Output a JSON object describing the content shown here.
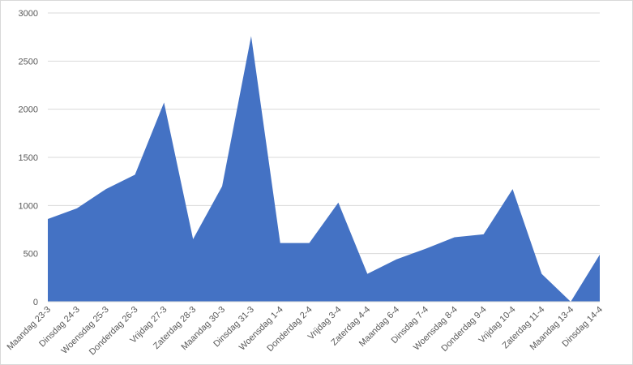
{
  "chart_data": {
    "type": "area",
    "categories": [
      "Maandag 23-3",
      "Dinsdag 24-3",
      "Woensdag 25-3",
      "Donderdag 26-3",
      "Vrijdag 27-3",
      "Zaterdag 28-3",
      "Maandag 30-3",
      "Dinsdag 31-3",
      "Woensdag 1-4",
      "Donderdag 2-4",
      "Vrijdag 3-4",
      "Zaterdag 4-4",
      "Maandag 6-4",
      "Dinsdag 7-4",
      "Woensdag 8-4",
      "Donderdag 9-4",
      "Vrijdag 10-4",
      "Zaterdag 11-4",
      "Maandag 13-4",
      "Dinsdag 14-4"
    ],
    "values": [
      860,
      970,
      1170,
      1320,
      2070,
      650,
      1200,
      2760,
      610,
      610,
      1030,
      290,
      440,
      550,
      670,
      700,
      1170,
      290,
      0,
      490
    ],
    "color": "#4472c4",
    "ylim": [
      0,
      3000
    ],
    "yticks": [
      0,
      500,
      1000,
      1500,
      2000,
      2500,
      3000
    ],
    "grid": true
  }
}
